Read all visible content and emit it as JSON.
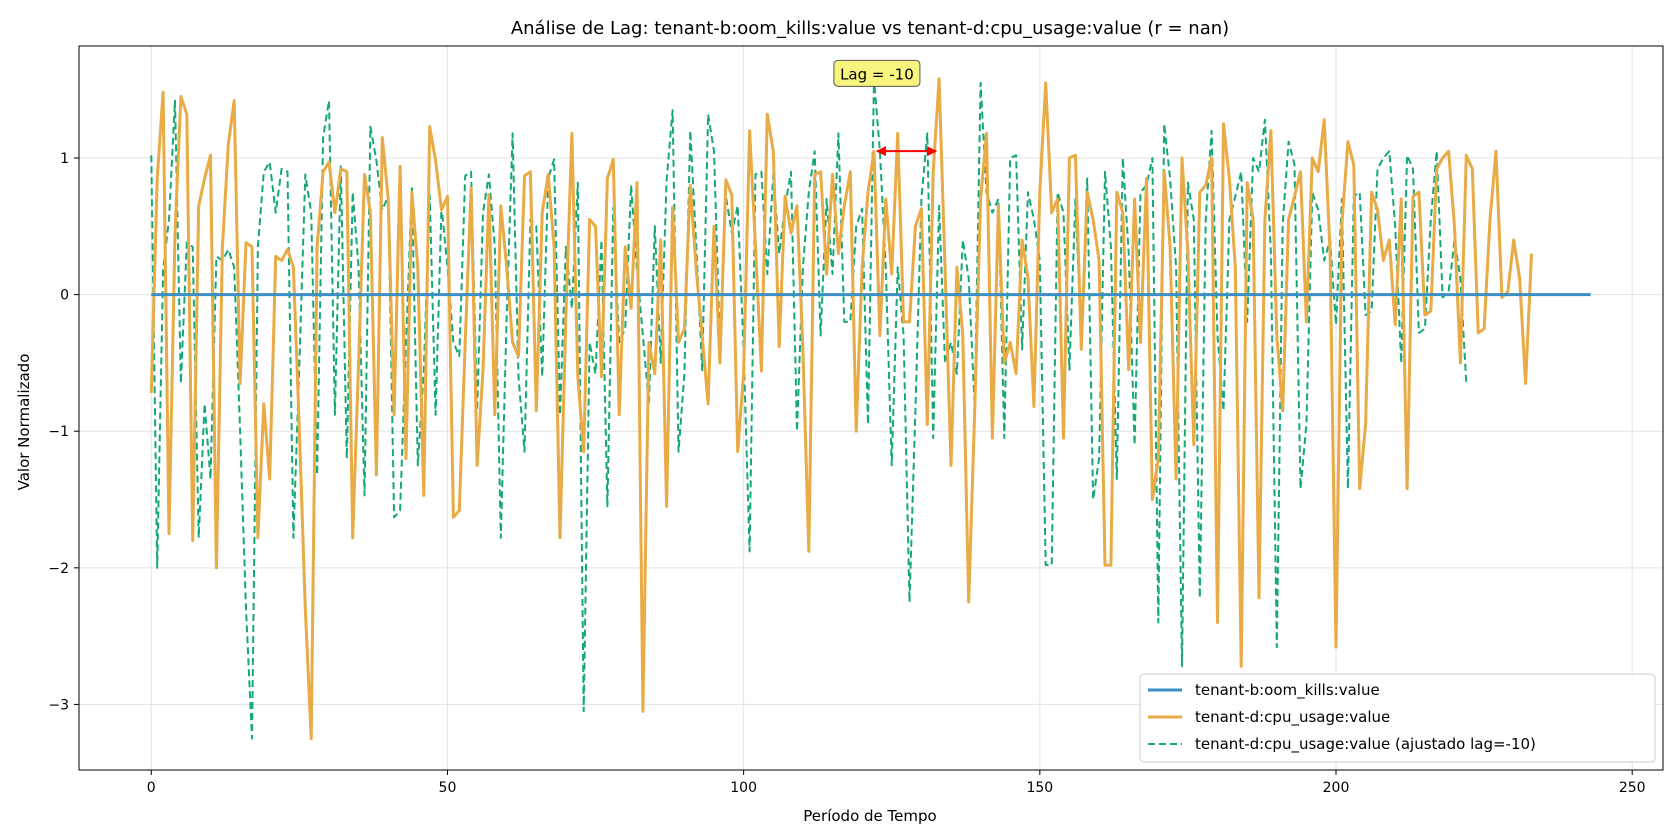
{
  "chart_data": {
    "type": "line",
    "title": "Análise de Lag: tenant-b:oom_kills:value vs tenant-d:cpu_usage:value (r = nan)",
    "xlabel": "Período de Tempo",
    "ylabel": "Valor Normalizado",
    "xlim": [
      -12.2,
      255.2
    ],
    "ylim": [
      -3.48,
      1.82
    ],
    "x_ticks": [
      0,
      50,
      100,
      150,
      200,
      250
    ],
    "x_tick_labels": [
      "0",
      "50",
      "100",
      "150",
      "200",
      "250"
    ],
    "y_ticks": [
      -3,
      -2,
      -1,
      0,
      1
    ],
    "y_tick_labels": [
      "−3",
      "−2",
      "−1",
      "0",
      "1"
    ],
    "grid": true,
    "legend_position": "lower-right",
    "annotation": {
      "text": "Lag = -10",
      "x": 122.5,
      "y": 1.62,
      "arrow_from_x": 122.5,
      "arrow_to_x": 132.5,
      "arrow_y": 1.05,
      "arrow_color": "#ff0000"
    },
    "series": [
      {
        "name": "tenant-b:oom_kills:value",
        "style": "solid",
        "color": "#3b8fc4",
        "x_start": 0,
        "x_end": 243,
        "constant_value": 0
      },
      {
        "name": "tenant-d:cpu_usage:value",
        "style": "solid",
        "color": "#e8ab46",
        "x_start": 0,
        "values": [
          -0.72,
          0.85,
          1.48,
          -1.75,
          0.45,
          1.45,
          1.32,
          -1.8,
          0.65,
          0.85,
          1.02,
          -2.0,
          0.35,
          1.1,
          1.42,
          -0.65,
          0.38,
          0.35,
          -1.78,
          -0.8,
          -1.35,
          0.28,
          0.25,
          0.33,
          0.2,
          -1.0,
          -2.3,
          -3.25,
          0.35,
          0.9,
          0.97,
          0.6,
          0.92,
          0.9,
          -1.78,
          -0.5,
          0.88,
          0.6,
          -1.32,
          1.15,
          0.7,
          -0.88,
          0.94,
          -1.2,
          0.75,
          0.2,
          -1.47,
          1.23,
          0.98,
          0.62,
          0.72,
          -1.63,
          -1.58,
          -0.35,
          0.78,
          -1.25,
          -0.55,
          0.73,
          -0.88,
          0.65,
          0.2,
          -0.35,
          -0.45,
          0.87,
          0.9,
          -0.85,
          0.6,
          0.88,
          0.35,
          -1.78,
          -0.15,
          1.18,
          -0.6,
          -1.15,
          0.55,
          0.5,
          -0.6,
          0.85,
          0.99,
          -0.88,
          0.35,
          -0.1,
          0.82,
          -3.05,
          -0.35,
          -0.58,
          0.4,
          -1.55,
          0.64,
          -0.35,
          -0.25,
          0.8,
          0.18,
          -0.3,
          -0.8,
          0.5,
          -0.5,
          0.84,
          0.73,
          -1.15,
          -0.58,
          1.2,
          0.35,
          -0.56,
          1.32,
          1.05,
          -0.38,
          0.72,
          0.45,
          0.65,
          -0.4,
          -1.88,
          0.88,
          0.9,
          0.15,
          0.88,
          0.3,
          0.65,
          0.9,
          -1.0,
          0.2,
          0.75,
          1.05,
          -0.3,
          0.7,
          0.15,
          1.18,
          -0.2,
          -0.2,
          0.5,
          0.63,
          -0.95,
          0.9,
          1.58,
          0.2,
          -1.25,
          0.2,
          -0.3,
          -2.25,
          -0.85,
          0.7,
          1.18,
          -1.05,
          0.65,
          -0.5,
          -0.35,
          -0.58,
          0.4,
          0.12,
          -0.82,
          0.75,
          1.55,
          0.6,
          0.7,
          -1.05,
          1.0,
          1.02,
          -0.4,
          0.75,
          0.55,
          0.25,
          -1.98,
          -1.98,
          0.75,
          0.6,
          -0.55,
          0.7,
          -0.35,
          0.85,
          -1.5,
          -1.2,
          0.9,
          0.35,
          -1.35,
          1.0,
          0.3,
          -1.1,
          0.75,
          0.8,
          1.0,
          -2.4,
          1.25,
          0.85,
          0.2,
          -2.72,
          0.82,
          0.55,
          -2.22,
          0.55,
          1.2,
          -0.3,
          -0.85,
          0.55,
          0.72,
          0.9,
          -0.2,
          1.0,
          0.9,
          1.28,
          0.3,
          -2.58,
          0.52,
          1.12,
          0.95,
          -1.42,
          -0.95,
          0.75,
          0.62,
          0.25,
          0.4,
          -0.22,
          0.7,
          -1.42,
          0.72,
          0.75,
          -0.15,
          -0.12,
          0.92,
          1.0,
          1.05,
          0.5,
          -0.5,
          1.02,
          0.92,
          -0.28,
          -0.25,
          0.55,
          1.05,
          -0.02,
          0.02,
          0.4,
          0.12,
          -0.65,
          0.3
        ]
      },
      {
        "name": "tenant-d:cpu_usage:value (ajustado lag=-10)",
        "style": "dashed",
        "color": "#14a878",
        "x_start": 0,
        "values": [
          1.02,
          -2.0,
          0.18,
          0.55,
          1.42,
          -0.65,
          0.38,
          0.35,
          -1.78,
          -0.8,
          -1.35,
          0.28,
          0.25,
          0.33,
          0.2,
          -1.0,
          -2.3,
          -3.25,
          0.35,
          0.9,
          0.97,
          0.6,
          0.92,
          0.9,
          -1.78,
          -0.5,
          0.88,
          0.6,
          -1.32,
          1.15,
          1.42,
          -0.88,
          0.94,
          -1.2,
          0.75,
          0.2,
          -1.47,
          1.23,
          0.98,
          0.62,
          0.72,
          -1.63,
          -1.58,
          -0.35,
          0.78,
          -1.25,
          -0.55,
          0.73,
          -0.88,
          0.65,
          0.2,
          -0.35,
          -0.45,
          0.87,
          0.9,
          -0.85,
          0.6,
          0.88,
          0.35,
          -1.78,
          -0.15,
          1.18,
          -0.6,
          -1.15,
          0.55,
          0.5,
          -0.6,
          0.85,
          0.99,
          -0.88,
          0.35,
          -0.1,
          0.82,
          -3.05,
          -0.35,
          -0.58,
          0.4,
          -1.55,
          0.64,
          -0.35,
          -0.25,
          0.8,
          0.18,
          -0.3,
          -0.8,
          0.5,
          -0.5,
          0.84,
          1.35,
          -1.15,
          -0.58,
          1.2,
          0.35,
          -0.56,
          1.32,
          1.05,
          -0.38,
          0.72,
          0.45,
          0.65,
          -0.4,
          -1.88,
          0.88,
          0.9,
          0.15,
          0.88,
          0.3,
          0.65,
          0.9,
          -1.0,
          0.2,
          0.75,
          1.05,
          -0.3,
          0.7,
          0.15,
          1.18,
          -0.2,
          -0.2,
          0.5,
          0.63,
          -0.95,
          1.58,
          1.05,
          0.2,
          -1.25,
          0.2,
          -0.3,
          -2.25,
          -0.85,
          0.7,
          1.18,
          -1.05,
          0.65,
          -0.5,
          -0.35,
          -0.58,
          0.4,
          0.12,
          -0.82,
          1.55,
          0.75,
          0.6,
          0.7,
          -1.05,
          1.0,
          1.02,
          -0.4,
          0.75,
          0.55,
          0.25,
          -1.98,
          -1.98,
          0.75,
          0.6,
          -0.55,
          0.7,
          -0.35,
          0.85,
          -1.5,
          -1.2,
          0.9,
          0.35,
          -1.35,
          1.0,
          0.3,
          -1.1,
          0.75,
          0.8,
          1.0,
          -2.4,
          1.25,
          0.85,
          0.2,
          -2.72,
          0.82,
          0.55,
          -2.22,
          0.55,
          1.2,
          -0.3,
          -0.85,
          0.55,
          0.72,
          0.9,
          -0.2,
          1.0,
          0.9,
          1.28,
          0.3,
          -2.58,
          0.52,
          1.12,
          0.95,
          -1.42,
          -0.95,
          0.75,
          0.62,
          0.25,
          0.4,
          -0.22,
          0.7,
          -1.42,
          0.72,
          0.75,
          -0.15,
          -0.12,
          0.92,
          1.0,
          1.05,
          0.5,
          -0.5,
          1.02,
          0.92,
          -0.28,
          -0.25,
          0.55,
          1.05,
          -0.02,
          0.02,
          0.4,
          0.12,
          -0.65
        ]
      }
    ]
  }
}
